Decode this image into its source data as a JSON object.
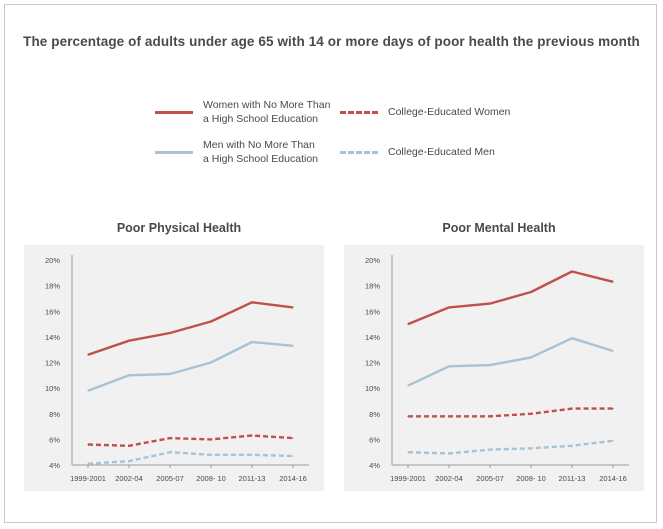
{
  "title": "The percentage of adults under age 65 with 14 or more days of poor health the previous month",
  "legend": [
    {
      "label": "Women with No More Than\na High School Education",
      "color": "#c0504d",
      "style": "solid"
    },
    {
      "label": "College-Educated Women",
      "color": "#c0504d",
      "style": "dashed"
    },
    {
      "label": "Men with No More Than\na High School Education",
      "color": "#a8c2d6",
      "style": "solid"
    },
    {
      "label": "College-Educated Men",
      "color": "#a8c2d6",
      "style": "dashed"
    }
  ],
  "chart_data": [
    {
      "type": "line",
      "title": "Poor Physical Health",
      "categories": [
        "1999-2001",
        "2002-04",
        "2005-07",
        "2008- 10",
        "2011-13",
        "2014-16"
      ],
      "y_ticks": [
        "4%",
        "6%",
        "8%",
        "10%",
        "12%",
        "14%",
        "16%",
        "18%",
        "20%"
      ],
      "ylim": [
        4,
        20
      ],
      "grid": false,
      "series": [
        {
          "name": "Women with No More Than a High School Education",
          "values": [
            12.6,
            13.7,
            14.3,
            15.2,
            16.7,
            16.3
          ],
          "color": "#c0504d",
          "style": "solid"
        },
        {
          "name": "Men with No More Than a High School Education",
          "values": [
            9.8,
            11.0,
            11.1,
            12.0,
            13.6,
            13.3
          ],
          "color": "#a8c2d6",
          "style": "solid"
        },
        {
          "name": "College-Educated Women",
          "values": [
            5.6,
            5.5,
            6.1,
            6.0,
            6.3,
            6.1
          ],
          "color": "#c0504d",
          "style": "dashed"
        },
        {
          "name": "College-Educated Men",
          "values": [
            4.1,
            4.3,
            5.0,
            4.8,
            4.8,
            4.7
          ],
          "color": "#a8c2d6",
          "style": "dashed"
        }
      ]
    },
    {
      "type": "line",
      "title": "Poor Mental Health",
      "categories": [
        "1999-2001",
        "2002-04",
        "2005-07",
        "2008- 10",
        "2011-13",
        "2014-16"
      ],
      "y_ticks": [
        "4%",
        "6%",
        "8%",
        "10%",
        "12%",
        "14%",
        "16%",
        "18%",
        "20%"
      ],
      "ylim": [
        4,
        20
      ],
      "grid": false,
      "series": [
        {
          "name": "Women with No More Than a High School Education",
          "values": [
            15.0,
            16.3,
            16.6,
            17.5,
            19.1,
            18.3
          ],
          "color": "#c0504d",
          "style": "solid"
        },
        {
          "name": "Men with No More Than a High School Education",
          "values": [
            10.2,
            11.7,
            11.8,
            12.4,
            13.9,
            12.9
          ],
          "color": "#a8c2d6",
          "style": "solid"
        },
        {
          "name": "College-Educated Women",
          "values": [
            7.8,
            7.8,
            7.8,
            8.0,
            8.4,
            8.4
          ],
          "color": "#c0504d",
          "style": "dashed"
        },
        {
          "name": "College-Educated Men",
          "values": [
            5.0,
            4.9,
            5.2,
            5.3,
            5.5,
            5.9
          ],
          "color": "#a8c2d6",
          "style": "dashed"
        }
      ]
    }
  ]
}
